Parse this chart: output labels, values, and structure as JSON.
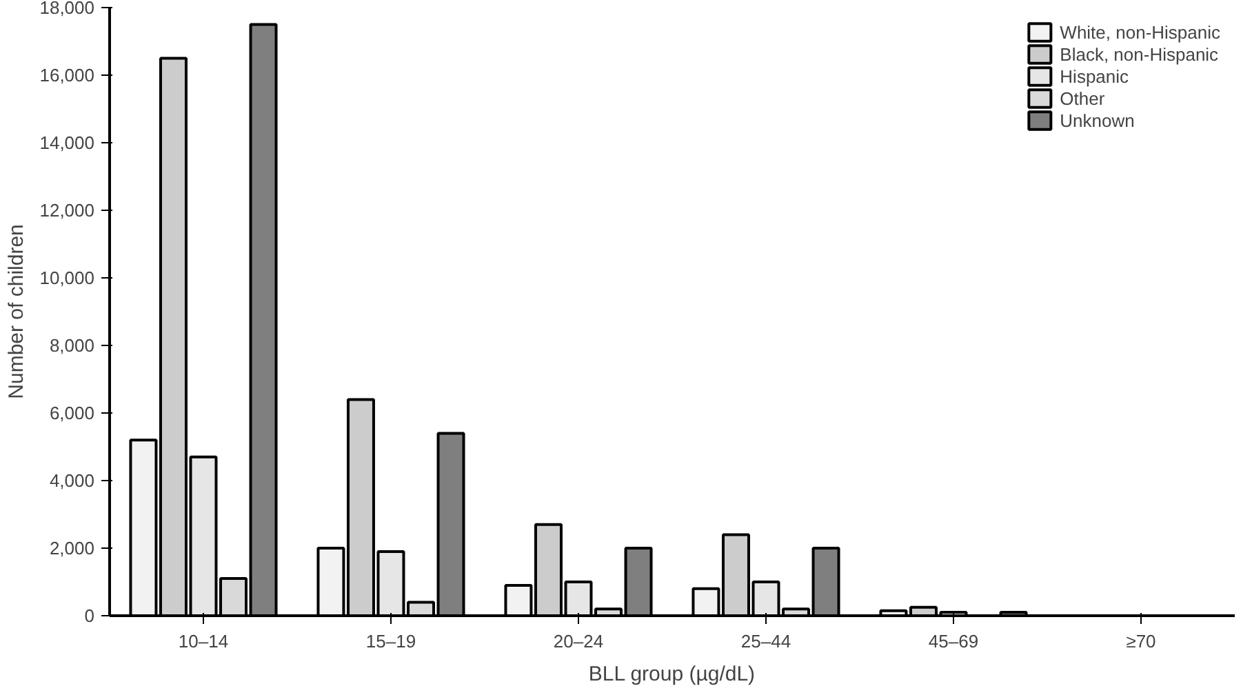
{
  "chart_data": {
    "type": "bar",
    "xlabel": "BLL group (µg/dL)",
    "ylabel": "Number of children",
    "categories": [
      "10–14",
      "15–19",
      "20–24",
      "25–44",
      "45–69",
      "≥70"
    ],
    "series": [
      {
        "name": "White, non-Hispanic",
        "color": "#f2f2f2",
        "values": [
          5200,
          2000,
          900,
          800,
          150,
          null
        ]
      },
      {
        "name": "Black, non-Hispanic",
        "color": "#cccccc",
        "values": [
          16500,
          6400,
          2700,
          2400,
          250,
          null
        ]
      },
      {
        "name": "Hispanic",
        "color": "#e6e6e6",
        "values": [
          4700,
          1900,
          1000,
          1000,
          100,
          null
        ]
      },
      {
        "name": "Other",
        "color": "#d9d9d9",
        "values": [
          1100,
          400,
          200,
          200,
          null,
          null
        ]
      },
      {
        "name": "Unknown",
        "color": "#7f7f7f",
        "values": [
          17500,
          5400,
          2000,
          2000,
          100,
          null
        ]
      }
    ],
    "ylim": [
      0,
      18000
    ],
    "yticks": [
      {
        "value": 0,
        "label": "0"
      },
      {
        "value": 2000,
        "label": "2,000"
      },
      {
        "value": 4000,
        "label": "4,000"
      },
      {
        "value": 6000,
        "label": "6,000"
      },
      {
        "value": 8000,
        "label": "8,000"
      },
      {
        "value": 10000,
        "label": "10,000"
      },
      {
        "value": 12000,
        "label": "12,000"
      },
      {
        "value": 14000,
        "label": "14,000"
      },
      {
        "value": 16000,
        "label": "16,000"
      },
      {
        "value": 18000,
        "label": "18,000"
      }
    ],
    "grid": false,
    "legend": "top right"
  }
}
